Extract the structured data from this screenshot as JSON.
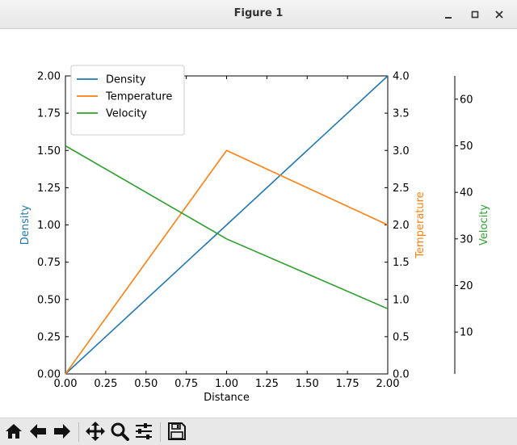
{
  "window": {
    "title": "Figure 1",
    "icons": {
      "minimize": "minimize-icon",
      "maximize": "maximize-icon",
      "close": "close-icon"
    }
  },
  "toolbar": {
    "buttons": [
      {
        "name": "home",
        "icon": "home-icon"
      },
      {
        "name": "back",
        "icon": "arrow-left-icon"
      },
      {
        "name": "forward",
        "icon": "arrow-right-icon"
      },
      {
        "name": "pan",
        "icon": "move-icon"
      },
      {
        "name": "zoom",
        "icon": "magnifier-icon"
      },
      {
        "name": "configure-subplots",
        "icon": "sliders-icon"
      },
      {
        "name": "save",
        "icon": "floppy-disk-icon"
      }
    ]
  },
  "chart_data": {
    "type": "line",
    "xlabel": "Distance",
    "x_ticks": [
      "0.00",
      "0.25",
      "0.50",
      "0.75",
      "1.00",
      "1.25",
      "1.50",
      "1.75",
      "2.00"
    ],
    "xlim": [
      0,
      2
    ],
    "axes": [
      {
        "id": "density",
        "label": "Density",
        "color": "#1f77b4",
        "ylim": [
          0,
          2
        ],
        "ticks": [
          "0.00",
          "0.25",
          "0.50",
          "0.75",
          "1.00",
          "1.25",
          "1.50",
          "1.75",
          "2.00"
        ]
      },
      {
        "id": "temperature",
        "label": "Temperature",
        "color": "#ff7f0e",
        "ylim": [
          0,
          4
        ],
        "ticks": [
          "0.0",
          "0.5",
          "1.0",
          "1.5",
          "2.0",
          "2.5",
          "3.0",
          "3.5",
          "4.0"
        ]
      },
      {
        "id": "velocity",
        "label": "Velocity",
        "color": "#2ca02c",
        "ylim": [
          1,
          65
        ],
        "ticks": [
          "10",
          "20",
          "30",
          "40",
          "50",
          "60"
        ]
      }
    ],
    "series": [
      {
        "name": "Density",
        "axis": "density",
        "color": "#1f77b4",
        "x": [
          0,
          1,
          2
        ],
        "y": [
          0,
          1,
          2
        ]
      },
      {
        "name": "Temperature",
        "axis": "temperature",
        "color": "#ff7f0e",
        "x": [
          0,
          1,
          2
        ],
        "y": [
          0,
          3,
          2
        ]
      },
      {
        "name": "Velocity",
        "axis": "velocity",
        "color": "#2ca02c",
        "x": [
          0,
          1,
          2
        ],
        "y": [
          50,
          30,
          15
        ]
      }
    ],
    "legend": {
      "position": "upper-left",
      "entries": [
        "Density",
        "Temperature",
        "Velocity"
      ]
    }
  }
}
